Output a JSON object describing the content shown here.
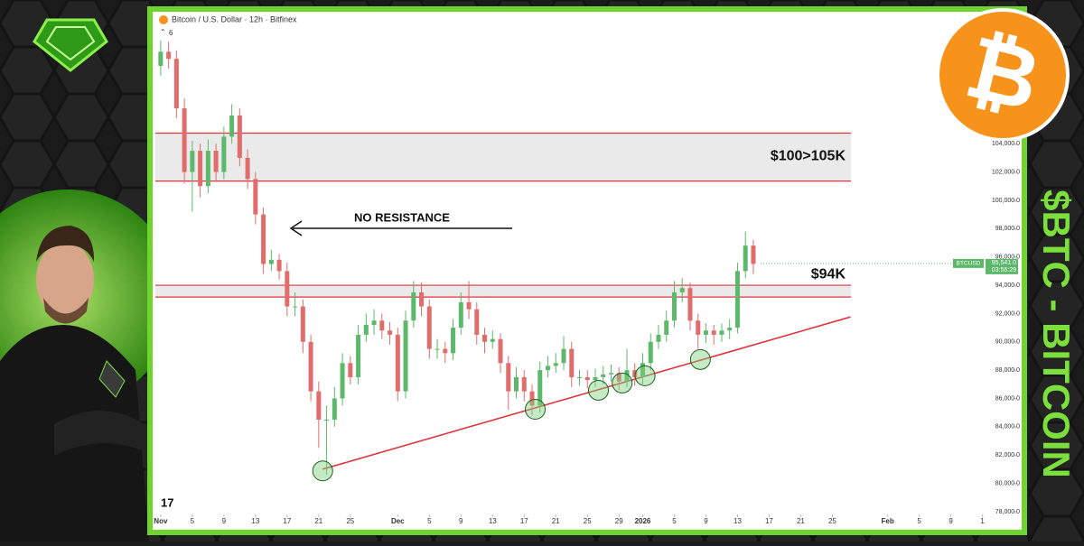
{
  "chart_data": {
    "type": "candlestick",
    "title": "Bitcoin / U.S. Dollar · 12h · Bitfinex",
    "indicator_count": "6",
    "x": [
      0,
      1,
      2,
      3,
      4,
      5,
      6,
      7,
      8,
      9,
      10,
      11,
      12,
      13,
      14,
      15,
      16,
      17,
      18,
      19,
      20,
      21,
      22,
      23,
      24,
      25,
      26,
      27,
      28,
      29,
      30,
      31,
      32,
      33,
      34,
      35,
      36,
      37,
      38,
      39,
      40,
      41,
      42,
      43,
      44,
      45,
      46,
      47,
      48,
      49,
      50,
      51,
      52,
      53,
      54,
      55,
      56,
      57,
      58,
      59,
      60,
      61,
      62,
      63,
      64,
      65,
      66,
      67,
      68,
      69,
      70,
      71,
      72,
      73,
      74,
      75
    ],
    "open": [
      109500,
      110500,
      110000,
      106500,
      102000,
      103500,
      101000,
      103500,
      102000,
      104500,
      106000,
      103000,
      101500,
      99000,
      95500,
      95800,
      95000,
      92500,
      92500,
      90000,
      86500,
      84500,
      84500,
      86000,
      88500,
      87500,
      90500,
      91200,
      91500,
      90800,
      90500,
      86500,
      91500,
      93500,
      92500,
      89500,
      89500,
      89200,
      91000,
      92800,
      92300,
      90500,
      90000,
      90200,
      88500,
      86500,
      87500,
      86500,
      85500,
      88000,
      88300,
      88500,
      89500,
      87500,
      87500,
      87300,
      87500,
      87700,
      87800,
      87200,
      88000,
      87500,
      88500,
      90000,
      90500,
      91500,
      93500,
      93800,
      91500,
      90500,
      90800,
      90500,
      90800,
      91000,
      95000,
      96800
    ],
    "high": [
      111300,
      111200,
      110600,
      107200,
      104200,
      104000,
      104300,
      104000,
      105200,
      106800,
      106500,
      103600,
      102000,
      99500,
      96500,
      96200,
      95600,
      93500,
      93000,
      90500,
      87200,
      85500,
      86800,
      89200,
      89000,
      91200,
      92000,
      92300,
      92000,
      91400,
      91000,
      92200,
      94300,
      94200,
      93000,
      90200,
      90000,
      91600,
      93500,
      94300,
      92800,
      91000,
      90800,
      90600,
      89000,
      88200,
      88000,
      87000,
      88600,
      89000,
      89200,
      90400,
      90000,
      88000,
      88000,
      88100,
      88300,
      88400,
      88200,
      89500,
      88500,
      89200,
      90600,
      91200,
      92200,
      94300,
      94500,
      94200,
      92000,
      91300,
      91200,
      91300,
      91600,
      95600,
      97800,
      97200
    ],
    "low": [
      108800,
      109300,
      105800,
      101200,
      99200,
      100200,
      100500,
      101300,
      101500,
      104000,
      102400,
      100800,
      98300,
      94800,
      95000,
      94400,
      91800,
      91800,
      89200,
      85800,
      82500,
      80600,
      84000,
      85500,
      87000,
      87000,
      90000,
      90500,
      90200,
      89800,
      85800,
      86000,
      91000,
      91800,
      88800,
      88800,
      88500,
      88700,
      90500,
      91600,
      89800,
      89200,
      89500,
      87800,
      85200,
      86000,
      85800,
      84800,
      85000,
      87500,
      87800,
      88000,
      86800,
      86900,
      86700,
      86800,
      87000,
      87200,
      86600,
      86800,
      86900,
      87000,
      88000,
      89500,
      90000,
      91000,
      92800,
      90800,
      89500,
      89900,
      89800,
      90000,
      90200,
      90600,
      94500,
      94800
    ],
    "close": [
      110500,
      110000,
      106500,
      102000,
      103500,
      101000,
      103500,
      102000,
      104500,
      106000,
      103000,
      101500,
      99000,
      95500,
      95800,
      95000,
      92500,
      92500,
      90000,
      86500,
      84500,
      84500,
      86000,
      88500,
      87500,
      90500,
      91200,
      91500,
      90800,
      90500,
      86500,
      91500,
      93500,
      92500,
      89500,
      89500,
      89200,
      91000,
      92800,
      92300,
      90500,
      90000,
      90200,
      88500,
      86500,
      87500,
      86500,
      85500,
      88000,
      88300,
      88500,
      89500,
      87500,
      87500,
      87300,
      87500,
      87700,
      87800,
      87200,
      88000,
      87500,
      88500,
      90000,
      90500,
      91500,
      93500,
      93800,
      91500,
      90500,
      90800,
      90500,
      90800,
      91000,
      95000,
      96800,
      95500
    ],
    "up_color": "#5cb86a",
    "down_color": "#e06c6c",
    "xlim": [
      -0.9,
      107.7
    ],
    "xticks": [
      {
        "value": 0,
        "label": "Nov"
      },
      {
        "value": 4,
        "label": "5"
      },
      {
        "value": 8,
        "label": "9"
      },
      {
        "value": 12,
        "label": "13"
      },
      {
        "value": 16,
        "label": "17"
      },
      {
        "value": 20,
        "label": "21"
      },
      {
        "value": 24,
        "label": "25"
      },
      {
        "value": 30,
        "label": "Dec"
      },
      {
        "value": 34,
        "label": "5"
      },
      {
        "value": 38,
        "label": "9"
      },
      {
        "value": 42,
        "label": "13"
      },
      {
        "value": 46,
        "label": "17"
      },
      {
        "value": 50,
        "label": "21"
      },
      {
        "value": 54,
        "label": "25"
      },
      {
        "value": 58,
        "label": "29"
      },
      {
        "value": 61,
        "label": "2026"
      },
      {
        "value": 65,
        "label": "5"
      },
      {
        "value": 69,
        "label": "9"
      },
      {
        "value": 73,
        "label": "13"
      },
      {
        "value": 77,
        "label": "17"
      },
      {
        "value": 81,
        "label": "21"
      },
      {
        "value": 85,
        "label": "25"
      },
      {
        "value": 92,
        "label": "Feb"
      },
      {
        "value": 96,
        "label": "5"
      },
      {
        "value": 100,
        "label": "9"
      },
      {
        "value": 104,
        "label": "1"
      }
    ],
    "ylim": [
      76784,
      113264
    ],
    "yticks": [
      {
        "value": 78000,
        "label": "78,000.0"
      },
      {
        "value": 80000,
        "label": "80,000.0"
      },
      {
        "value": 82000,
        "label": "82,000.0"
      },
      {
        "value": 84000,
        "label": "84,000.0"
      },
      {
        "value": 86000,
        "label": "86,000.0"
      },
      {
        "value": 88000,
        "label": "88,000.0"
      },
      {
        "value": 90000,
        "label": "90,000.0"
      },
      {
        "value": 92000,
        "label": "92,000.0"
      },
      {
        "value": 94000,
        "label": "94,000.0"
      },
      {
        "value": 96000,
        "label": "96,000.0"
      },
      {
        "value": 98000,
        "label": "98,000.0"
      },
      {
        "value": 100000,
        "label": "100,000.0"
      },
      {
        "value": 102000,
        "label": "102,000.0"
      },
      {
        "value": 104000,
        "label": "104,000.0"
      }
    ],
    "zones": [
      {
        "label": "$100>105K",
        "top": 104752,
        "bottom": 101360
      },
      {
        "label": "$94K",
        "top": 94000,
        "bottom": 93168
      }
    ],
    "trendline": {
      "x": [
        20.5,
        87.3
      ],
      "y": [
        81000,
        91760
      ]
    },
    "touch_points": {
      "x": [
        20.5,
        47.4,
        55.4,
        58.4,
        61.3,
        68.3
      ],
      "y": [
        80880,
        85232,
        86576,
        87088,
        87600,
        88752
      ]
    },
    "annotation": "NO RESISTANCE",
    "last_price": {
      "symbol": "BTCUSD",
      "value": 95541,
      "label": "95,541.0",
      "countdown": "03:56:29"
    },
    "side_title": "$BTC - BITCOIN"
  }
}
